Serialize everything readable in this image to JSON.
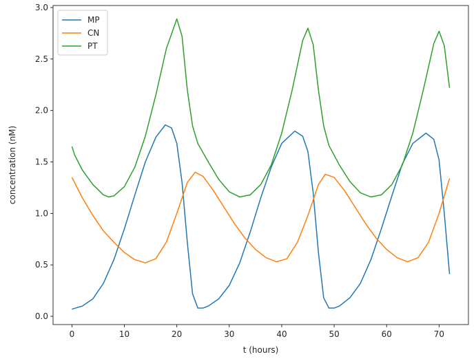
{
  "chart_data": {
    "type": "line",
    "title": "",
    "xlabel": "t (hours)",
    "ylabel": "concentration (nM)",
    "xlim": [
      -3.6,
      75.6
    ],
    "ylim": [
      -0.08,
      3.02
    ],
    "xticks": [
      0,
      10,
      20,
      30,
      40,
      50,
      60,
      70
    ],
    "yticks": [
      0.0,
      0.5,
      1.0,
      1.5,
      2.0,
      2.5,
      3.0
    ],
    "xtick_labels": [
      "0",
      "10",
      "20",
      "30",
      "40",
      "50",
      "60",
      "70"
    ],
    "ytick_labels": [
      "0.0",
      "0.5",
      "1.0",
      "1.5",
      "2.0",
      "2.5",
      "3.0"
    ],
    "grid": false,
    "legend_position": "upper-left",
    "series": [
      {
        "name": "MP",
        "color": "#1f77b4",
        "points": [
          [
            0,
            0.07
          ],
          [
            2,
            0.1
          ],
          [
            4,
            0.17
          ],
          [
            6,
            0.32
          ],
          [
            8,
            0.55
          ],
          [
            10,
            0.85
          ],
          [
            12,
            1.18
          ],
          [
            14,
            1.5
          ],
          [
            16,
            1.74
          ],
          [
            17.8,
            1.86
          ],
          [
            19,
            1.83
          ],
          [
            20,
            1.68
          ],
          [
            21,
            1.3
          ],
          [
            22,
            0.72
          ],
          [
            23,
            0.22
          ],
          [
            24,
            0.08
          ],
          [
            25,
            0.08
          ],
          [
            26,
            0.1
          ],
          [
            28,
            0.17
          ],
          [
            30,
            0.3
          ],
          [
            32,
            0.52
          ],
          [
            34,
            0.82
          ],
          [
            36,
            1.15
          ],
          [
            38,
            1.45
          ],
          [
            40,
            1.68
          ],
          [
            42.5,
            1.8
          ],
          [
            44,
            1.75
          ],
          [
            45,
            1.6
          ],
          [
            46,
            1.2
          ],
          [
            47,
            0.62
          ],
          [
            48,
            0.18
          ],
          [
            49,
            0.08
          ],
          [
            50,
            0.08
          ],
          [
            51,
            0.1
          ],
          [
            53,
            0.18
          ],
          [
            55,
            0.32
          ],
          [
            57,
            0.55
          ],
          [
            59,
            0.85
          ],
          [
            61,
            1.17
          ],
          [
            63,
            1.48
          ],
          [
            65,
            1.68
          ],
          [
            67.5,
            1.78
          ],
          [
            69,
            1.72
          ],
          [
            70,
            1.52
          ],
          [
            71,
            1.0
          ],
          [
            72,
            0.41
          ]
        ]
      },
      {
        "name": "CN",
        "color": "#ff7f0e",
        "points": [
          [
            0,
            1.35
          ],
          [
            2,
            1.15
          ],
          [
            4,
            0.98
          ],
          [
            6,
            0.83
          ],
          [
            8,
            0.72
          ],
          [
            10,
            0.62
          ],
          [
            12,
            0.55
          ],
          [
            14,
            0.52
          ],
          [
            16,
            0.56
          ],
          [
            18,
            0.72
          ],
          [
            20,
            1.0
          ],
          [
            22,
            1.3
          ],
          [
            23.5,
            1.4
          ],
          [
            25,
            1.36
          ],
          [
            27,
            1.22
          ],
          [
            29,
            1.06
          ],
          [
            31,
            0.9
          ],
          [
            33,
            0.76
          ],
          [
            35,
            0.65
          ],
          [
            37,
            0.57
          ],
          [
            39,
            0.53
          ],
          [
            41,
            0.56
          ],
          [
            43,
            0.72
          ],
          [
            45,
            0.98
          ],
          [
            47,
            1.28
          ],
          [
            48.3,
            1.38
          ],
          [
            50,
            1.35
          ],
          [
            52,
            1.22
          ],
          [
            54,
            1.06
          ],
          [
            56,
            0.9
          ],
          [
            58,
            0.76
          ],
          [
            60,
            0.65
          ],
          [
            62,
            0.57
          ],
          [
            64,
            0.53
          ],
          [
            66,
            0.57
          ],
          [
            68,
            0.72
          ],
          [
            70,
            1.0
          ],
          [
            72,
            1.34
          ]
        ]
      },
      {
        "name": "PT",
        "color": "#2ca02c",
        "points": [
          [
            0,
            1.65
          ],
          [
            0.5,
            1.57
          ],
          [
            2,
            1.42
          ],
          [
            4,
            1.28
          ],
          [
            6,
            1.18
          ],
          [
            7,
            1.16
          ],
          [
            8,
            1.17
          ],
          [
            10,
            1.26
          ],
          [
            12,
            1.45
          ],
          [
            14,
            1.75
          ],
          [
            16,
            2.15
          ],
          [
            18,
            2.6
          ],
          [
            20,
            2.89
          ],
          [
            21,
            2.72
          ],
          [
            22,
            2.2
          ],
          [
            23,
            1.85
          ],
          [
            24,
            1.68
          ],
          [
            26,
            1.5
          ],
          [
            28,
            1.33
          ],
          [
            30,
            1.21
          ],
          [
            32,
            1.16
          ],
          [
            34,
            1.18
          ],
          [
            36,
            1.28
          ],
          [
            38,
            1.47
          ],
          [
            40,
            1.78
          ],
          [
            42,
            2.2
          ],
          [
            44,
            2.68
          ],
          [
            45,
            2.8
          ],
          [
            46,
            2.64
          ],
          [
            47,
            2.2
          ],
          [
            48,
            1.85
          ],
          [
            49,
            1.66
          ],
          [
            51,
            1.47
          ],
          [
            53,
            1.31
          ],
          [
            55,
            1.2
          ],
          [
            57,
            1.16
          ],
          [
            59,
            1.18
          ],
          [
            61,
            1.28
          ],
          [
            63,
            1.47
          ],
          [
            65,
            1.78
          ],
          [
            67,
            2.2
          ],
          [
            69,
            2.65
          ],
          [
            70,
            2.77
          ],
          [
            71,
            2.63
          ],
          [
            72,
            2.22
          ]
        ]
      }
    ]
  }
}
